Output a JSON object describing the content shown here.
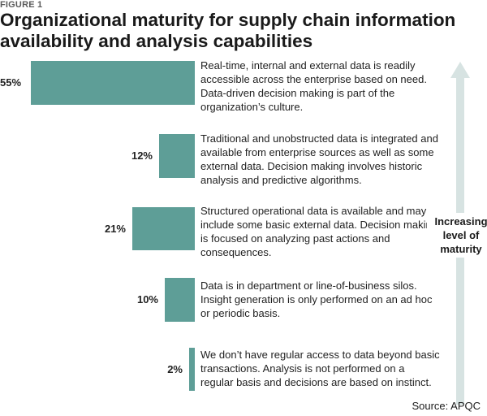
{
  "figure_label": "FIGURE 1",
  "title": "Organizational maturity for supply chain information availability and analysis capabilities",
  "source": "Source: APQC",
  "arrow_label": "Increasing level of maturity",
  "colors": {
    "bar": "#5e9e97",
    "arrow": "#d7e3e2"
  },
  "chart_data": {
    "type": "bar",
    "orientation": "horizontal",
    "title": "Organizational maturity for supply chain information availability and analysis capabilities",
    "categories": [
      "Real-time, internal and external data is readily accessible across the enterprise based on need. Data-driven decision making is part of the organization’s culture.",
      "Traditional and unobstructed data is integrated and available from enterprise sources as well as some external data. Decision making involves historic analysis and predictive algorithms.",
      "Structured operational data is available and may include some basic external data. Decision making is focused on analyzing past actions and consequences.",
      "Data is in department or line-of-business silos. Insight generation is only performed on an ad hoc or periodic basis.",
      "We don’t have regular access to data beyond basic transactions. Analysis is not performed on a regular basis and decisions are based on instinct."
    ],
    "values": [
      55,
      12,
      21,
      10,
      2
    ],
    "value_labels": [
      "55%",
      "12%",
      "21%",
      "10%",
      "2%"
    ],
    "unit": "%"
  }
}
